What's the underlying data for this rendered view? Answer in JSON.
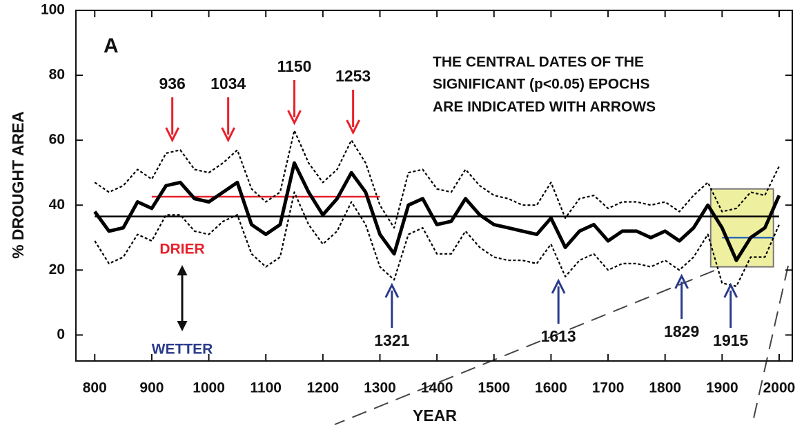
{
  "chart_data": {
    "type": "line",
    "panel_label": "A",
    "xlabel": "YEAR",
    "ylabel": "% DROUGHT AREA",
    "annotation_lines": [
      "THE CENTRAL DATES OF THE",
      "SIGNIFICANT (p<0.05) EPOCHS",
      "ARE INDICATED WITH ARROWS"
    ],
    "drier_label": "DRIER",
    "wetter_label": "WETTER",
    "xlim": [
      767,
      2023
    ],
    "ylim": [
      -8,
      100
    ],
    "xticks": [
      800,
      900,
      1000,
      1100,
      1200,
      1300,
      1400,
      1500,
      1600,
      1700,
      1800,
      1900,
      2000
    ],
    "yticks": [
      0,
      20,
      40,
      60,
      80,
      100
    ],
    "x": [
      800,
      825,
      850,
      875,
      900,
      925,
      950,
      975,
      1000,
      1025,
      1050,
      1075,
      1100,
      1125,
      1150,
      1175,
      1200,
      1225,
      1250,
      1275,
      1300,
      1325,
      1350,
      1375,
      1400,
      1425,
      1450,
      1475,
      1500,
      1525,
      1550,
      1575,
      1600,
      1625,
      1650,
      1675,
      1700,
      1725,
      1750,
      1775,
      1800,
      1825,
      1850,
      1875,
      1900,
      1925,
      1950,
      1975,
      2000
    ],
    "series": [
      {
        "color": "#000000",
        "style": "solid",
        "values": [
          38,
          32,
          33,
          41,
          39,
          46,
          47,
          42,
          41,
          44,
          47,
          34,
          31,
          34,
          53,
          44,
          37,
          42,
          50,
          44,
          31,
          25,
          40,
          42,
          34,
          35,
          42,
          37,
          34,
          33,
          32,
          31,
          36,
          27,
          32,
          34,
          29,
          32,
          32,
          30,
          32,
          29,
          33,
          40,
          33,
          23,
          30,
          33,
          43
        ]
      },
      {
        "color": "#000000",
        "style": "dashed",
        "values": [
          47,
          44,
          46,
          51,
          48,
          56,
          57,
          51,
          50,
          53,
          57,
          45,
          41,
          44,
          63,
          53,
          47,
          51,
          60,
          53,
          40,
          33,
          50,
          51,
          45,
          44,
          51,
          46,
          43,
          42,
          40,
          40,
          47,
          36,
          42,
          43,
          39,
          41,
          41,
          40,
          41,
          38,
          43,
          47,
          38,
          39,
          44,
          43,
          52
        ]
      },
      {
        "color": "#000000",
        "style": "dashed",
        "values": [
          29,
          22,
          24,
          31,
          29,
          37,
          37,
          32,
          31,
          35,
          37,
          25,
          21,
          24,
          44,
          34,
          28,
          32,
          41,
          34,
          21,
          17,
          31,
          33,
          25,
          25,
          32,
          27,
          24,
          23,
          23,
          22,
          28,
          18,
          23,
          25,
          20,
          22,
          22,
          21,
          23,
          20,
          24,
          31,
          16,
          15,
          24,
          24,
          34
        ]
      }
    ],
    "mean": {
      "value": 36.5,
      "color": "#000000"
    },
    "drier_epoch_mean": {
      "start": 900,
      "end": 1300,
      "value": 42.6,
      "color": "#e8202a"
    },
    "recent_mean": {
      "start": 1900,
      "end": 1990,
      "value": 30,
      "color": "#2a6ab8"
    },
    "highlight_box": {
      "xlim": [
        1880,
        1990
      ],
      "ylim": [
        21,
        45
      ],
      "color": "#eef0a0"
    },
    "drier_epochs": {
      "color": "#e8202a",
      "years": [
        936,
        1034,
        1150,
        1253
      ]
    },
    "wetter_epochs": {
      "color": "#2a3a8c",
      "years": [
        1321,
        1613,
        1829,
        1915
      ]
    }
  }
}
